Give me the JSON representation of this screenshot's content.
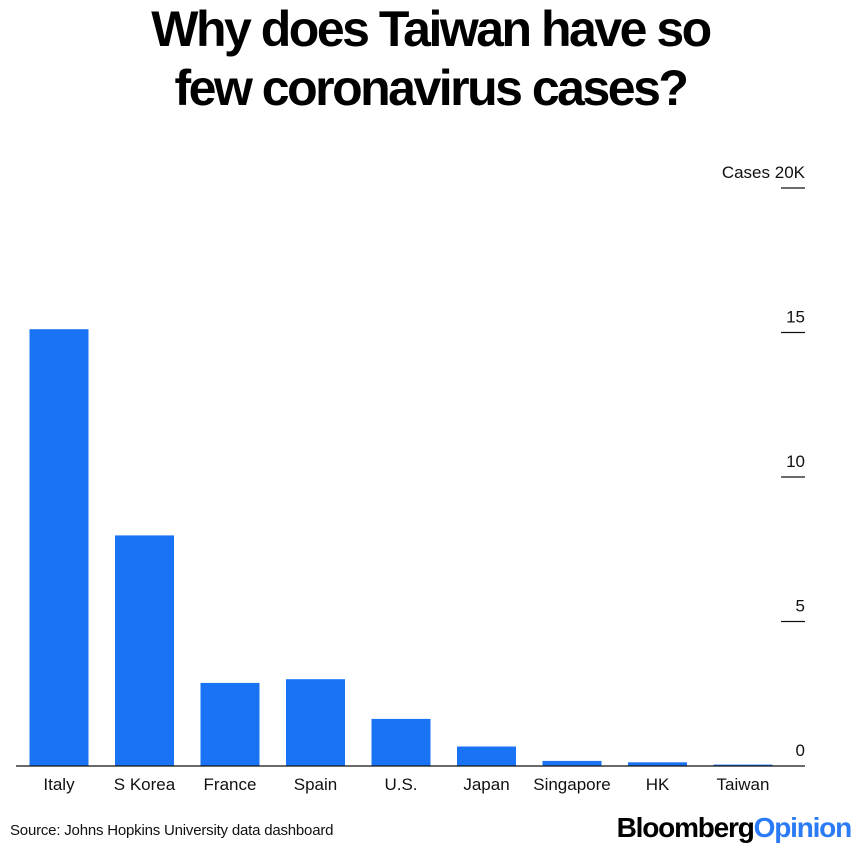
{
  "title_lines": [
    "Why does Taiwan have so",
    "few coronavirus cases?"
  ],
  "source": "Source: Johns Hopkins University data dashboard",
  "brand": {
    "part1": "Bloomberg",
    "part2": "Opinion"
  },
  "colors": {
    "bar": "#1a73f5",
    "axis": "#111111",
    "brand_accent": "#2b7bf7"
  },
  "chart_data": {
    "type": "bar",
    "title": "Why does Taiwan have so few coronavirus cases?",
    "categories": [
      "Italy",
      "S Korea",
      "France",
      "Spain",
      "U.S.",
      "Japan",
      "Singapore",
      "HK",
      "Taiwan"
    ],
    "values": [
      15113,
      7979,
      2876,
      3004,
      1629,
      675,
      178,
      129,
      49
    ],
    "ylabel": "Cases",
    "ylim": [
      0,
      20000
    ],
    "yticks": [
      0,
      5000,
      10000,
      15000,
      20000
    ],
    "ytick_labels": [
      "0",
      "5",
      "10",
      "15",
      "Cases 20K"
    ],
    "y_axis_side": "right",
    "grid": false,
    "legend": "none"
  }
}
